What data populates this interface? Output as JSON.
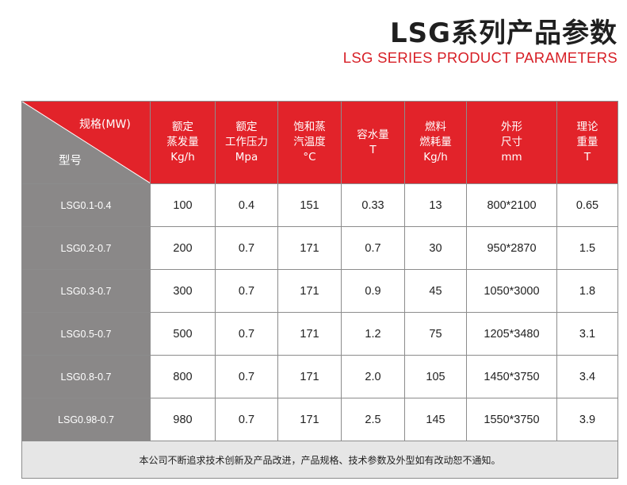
{
  "title": {
    "cn": "LSG系列产品参数",
    "en": "LSG SERIES PRODUCT PARAMETERS"
  },
  "header": {
    "corner_top": "规格(MW)",
    "corner_bottom": "型号",
    "columns": [
      [
        "额定",
        "蒸发量",
        "Kg/h"
      ],
      [
        "额定",
        "工作压力",
        "Mpa"
      ],
      [
        "饱和蒸",
        "汽温度",
        "°C"
      ],
      [
        "容水量",
        "T"
      ],
      [
        "燃料",
        "燃耗量",
        "Kg/h"
      ],
      [
        "外形",
        "尺寸",
        "mm"
      ],
      [
        "理论",
        "重量",
        "T"
      ]
    ]
  },
  "rows": [
    [
      "LSG0.1-0.4",
      "100",
      "0.4",
      "151",
      "0.33",
      "13",
      "800*2100",
      "0.65"
    ],
    [
      "LSG0.2-0.7",
      "200",
      "0.7",
      "171",
      "0.7",
      "30",
      "950*2870",
      "1.5"
    ],
    [
      "LSG0.3-0.7",
      "300",
      "0.7",
      "171",
      "0.9",
      "45",
      "1050*3000",
      "1.8"
    ],
    [
      "LSG0.5-0.7",
      "500",
      "0.7",
      "171",
      "1.2",
      "75",
      "1205*3480",
      "3.1"
    ],
    [
      "LSG0.8-0.7",
      "800",
      "0.7",
      "171",
      "2.0",
      "105",
      "1450*3750",
      "3.4"
    ],
    [
      "LSG0.98-0.7",
      "980",
      "0.7",
      "171",
      "2.5",
      "145",
      "1550*3750",
      "3.9"
    ]
  ],
  "footer": {
    "note": "本公司不断追求技术创新及产品改进，产品规格、技术参数及外型如有改动恕不通知。"
  },
  "colors": {
    "header_red": "#e2232a",
    "title_red": "#d71f26",
    "model_gray": "#8a8888",
    "footer_gray": "#e6e6e6"
  }
}
